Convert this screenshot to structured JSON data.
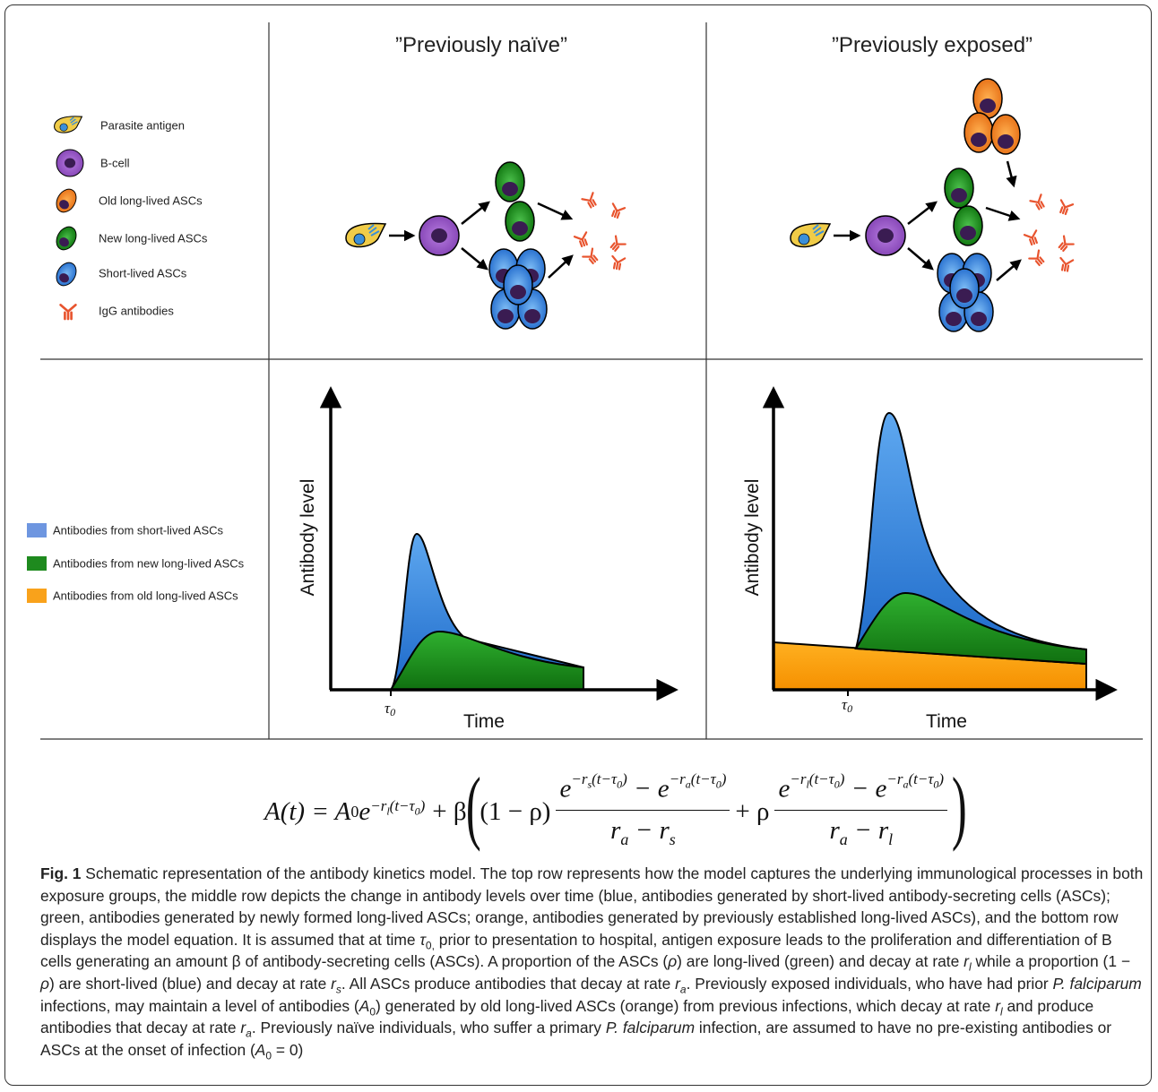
{
  "columns": [
    "”Previously naïve”",
    "”Previously exposed”"
  ],
  "legend_cells": [
    "Parasite antigen",
    "B-cell",
    "Old long-lived ASCs",
    "New long-lived ASCs",
    "Short-lived ASCs",
    "IgG antibodies"
  ],
  "legend_antibodies": [
    "Antibodies from short-lived ASCs",
    "Antibodies from new long-lived ASCs",
    "Antibodies from old long-lived ASCs"
  ],
  "plots": [
    {
      "y_label": "Antibody level",
      "x_label": "Time",
      "t0_symbol": "τ",
      "t0_sub": "0"
    },
    {
      "y_label": "Antibody level",
      "x_label": "Time",
      "t0_symbol": "τ",
      "t0_sub": "0"
    }
  ],
  "equation": [
    "A(t) = A",
    "0",
    "e",
    "−r",
    "l",
    "(t−τ",
    "0",
    ")",
    "+ β",
    "(",
    "(1 − ρ)",
    "e",
    "−r",
    "s",
    "(t−τ",
    "0",
    ")",
    " − e",
    "−r",
    "a",
    "(t−τ",
    "0",
    ")",
    "r",
    "a",
    " − r",
    "s",
    "+ ρ",
    "e",
    "−r",
    "l",
    "(t−τ",
    "0",
    ")",
    " − e",
    "−r",
    "a",
    "(t−τ",
    "0",
    ")",
    "r",
    "a",
    " − r",
    "l",
    ")"
  ],
  "caption": {
    "label": "Fig. 1",
    "parts": [
      " Schematic representation of the antibody kinetics model. The top row represents how the model captures the underlying immunological processes in both exposure groups, the middle row depicts the change in antibody levels over time (blue, antibodies generated by short-lived antibody-secreting cells (ASCs); green, antibodies generated by newly formed long-lived ASCs; orange, antibodies generated by previously established long-lived ASCs), and the bottom row displays the model equation. It is assumed that at time ",
      "τ",
      "0,",
      " prior to presentation to hospital, antigen exposure leads to the proliferation and differentiation of B cells generating an amount β of antibody-secreting cells (ASCs). A proportion of the ASCs (",
      "ρ",
      ") are long-lived (green) and decay at rate ",
      "r",
      "l",
      " while a proportion (1 − ",
      "ρ",
      ") are short-lived (blue) and decay at rate ",
      "r",
      "s",
      ". All ASCs produce antibodies that decay at rate ",
      "r",
      "a",
      ". Previously exposed individuals, who have had prior ",
      "P. falciparum",
      " infections, may maintain a level of antibodies (",
      "A",
      "0",
      ") generated by old long-lived ASCs (orange) from previous infections, which decay at rate ",
      "r",
      "l",
      " and produce antibodies that decay at rate ",
      "r",
      "a",
      ". Previously naïve individuals, who suffer a primary ",
      "P. falciparum",
      " infection, are assumed to have no pre-existing antibodies or ASCs at the onset of infection (",
      "A",
      "0",
      " = 0)"
    ]
  }
}
